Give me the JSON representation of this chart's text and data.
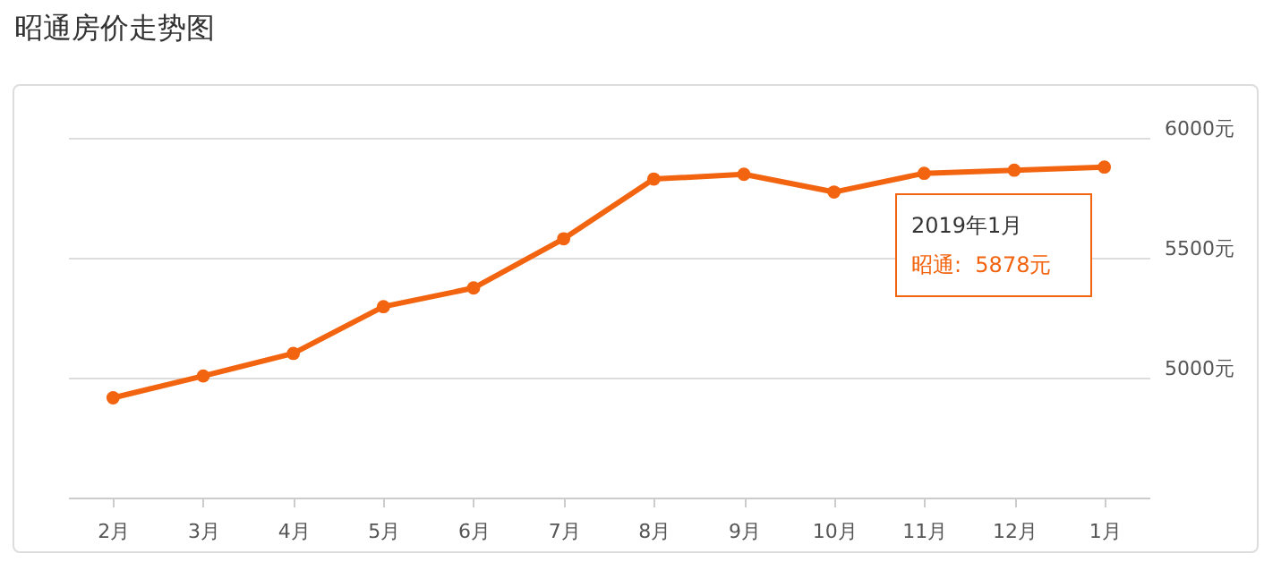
{
  "chart_data": {
    "type": "line",
    "title": "昭通房价走势图",
    "categories": [
      "2月",
      "3月",
      "4月",
      "5月",
      "6月",
      "7月",
      "8月",
      "9月",
      "10月",
      "11月",
      "12月",
      "1月"
    ],
    "series": [
      {
        "color": "#f2640f",
        "values": [
          4916,
          5007,
          5101,
          5296,
          5374,
          5579,
          5828,
          5848,
          5774,
          5852,
          5865,
          5878
        ]
      }
    ],
    "ylim": [
      4500,
      6000
    ],
    "yticks": [
      {
        "value": 5000,
        "label": "5000元"
      },
      {
        "value": 5500,
        "label": "5500元"
      },
      {
        "value": 6000,
        "label": "6000元"
      }
    ],
    "grid": "y",
    "marker": "circle",
    "annotations": [
      "2019年1月",
      "昭通:  5878元"
    ]
  }
}
